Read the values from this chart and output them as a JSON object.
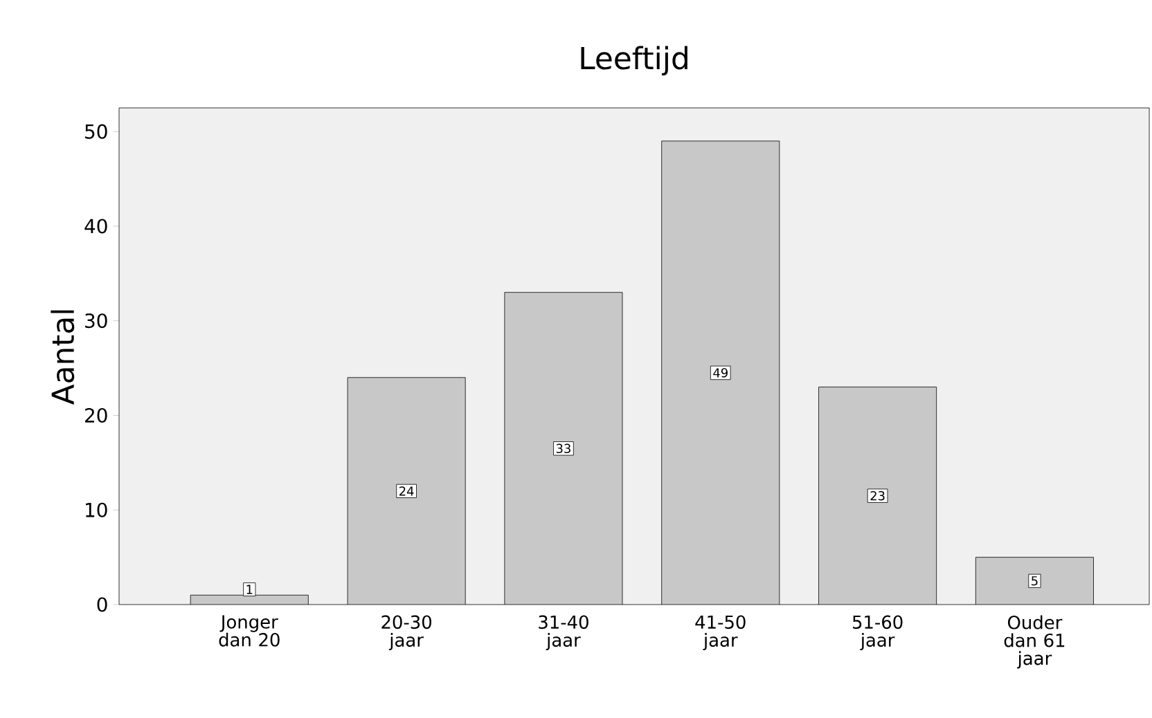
{
  "chart_data": {
    "type": "bar",
    "title": "Leeftijd",
    "ylabel": "Aantal",
    "categories": [
      "Jonger dan 20",
      "20-30 jaar",
      "31-40 jaar",
      "41-50 jaar",
      "51-60 jaar",
      "Ouder dan 61 jaar"
    ],
    "values": [
      1,
      24,
      33,
      49,
      23,
      5
    ],
    "color": "#c8c8c8",
    "data_labels": true,
    "ylim": [
      0,
      52.5
    ],
    "yticks": [
      0,
      10,
      20,
      30,
      40,
      50
    ],
    "grid": false
  }
}
